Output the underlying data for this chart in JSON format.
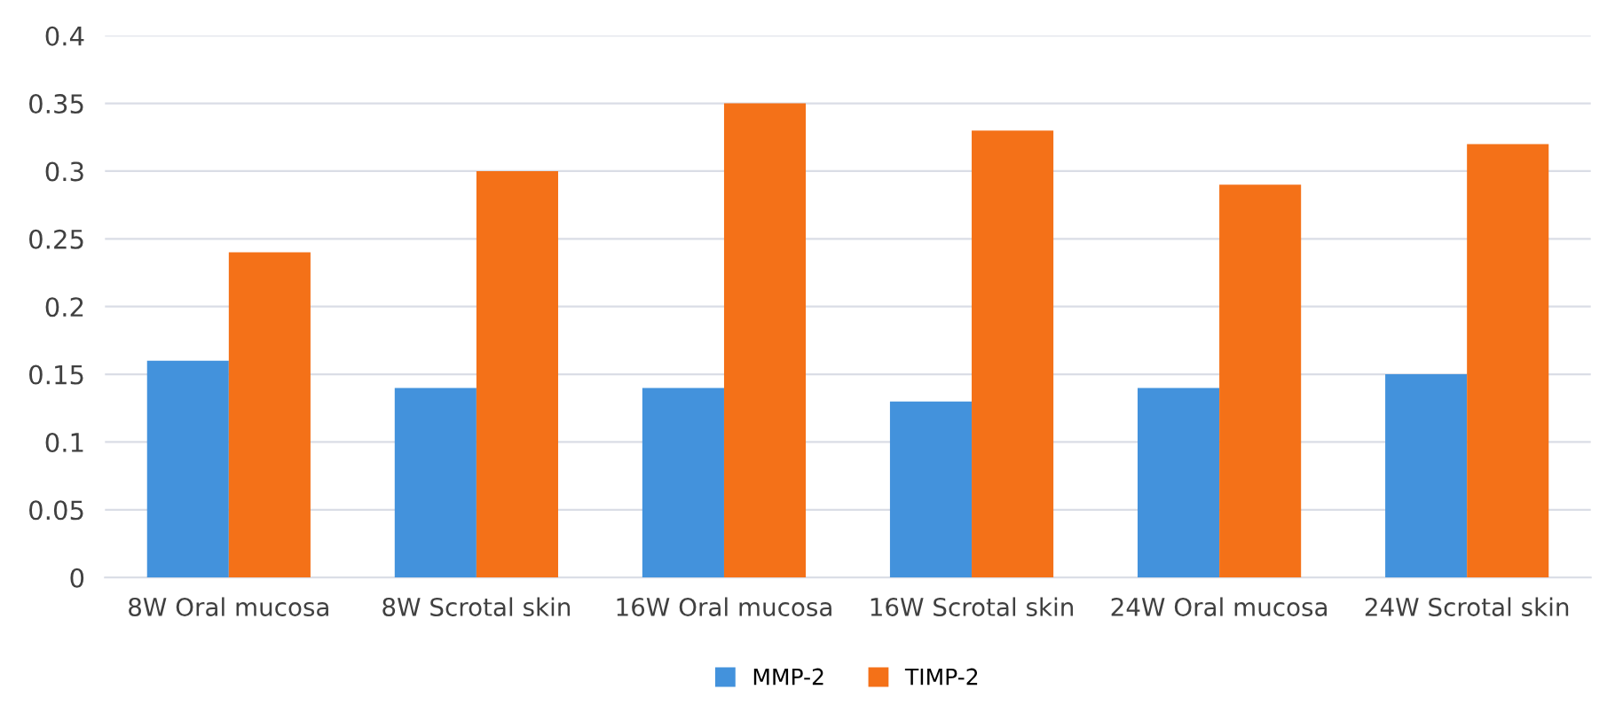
{
  "chart_data": {
    "type": "bar",
    "categories": [
      "8W Oral mucosa",
      "8W Scrotal skin",
      "16W Oral mucosa",
      "16W Scrotal skin",
      "24W Oral mucosa",
      "24W Scrotal skin"
    ],
    "series": [
      {
        "name": "MMP-2",
        "color": "#4392dc",
        "values": [
          0.16,
          0.14,
          0.14,
          0.13,
          0.14,
          0.15
        ]
      },
      {
        "name": "TIMP-2",
        "color": "#f47118",
        "values": [
          0.24,
          0.3,
          0.35,
          0.33,
          0.29,
          0.32
        ]
      }
    ],
    "ylim": [
      0,
      0.4
    ],
    "yticks": [
      0,
      0.05,
      0.1,
      0.15,
      0.2,
      0.25,
      0.3,
      0.35,
      0.4
    ],
    "grid": "y",
    "legend": "bottom"
  }
}
